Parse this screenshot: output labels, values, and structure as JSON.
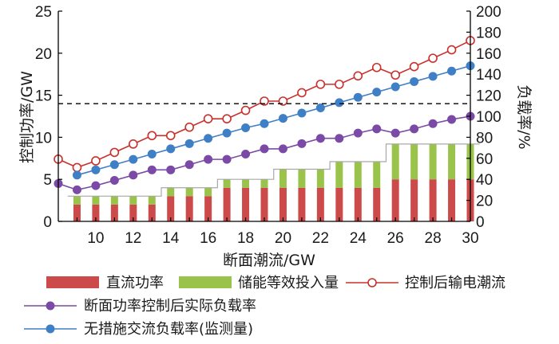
{
  "chart_data": {
    "type": "bar+line",
    "xlabel": "断面潮流/GW",
    "ylabel_left": "控制功率/GW",
    "ylabel_right": "负载率/%",
    "xlim": [
      8,
      30
    ],
    "ylim_left": [
      0,
      25
    ],
    "ylim_right": [
      0,
      200
    ],
    "x_ticks": [
      "10",
      "12",
      "14",
      "16",
      "18",
      "20",
      "22",
      "24",
      "26",
      "28",
      "30"
    ],
    "y_left_ticks": [
      "0",
      "5",
      "10",
      "15",
      "20",
      "25"
    ],
    "y_right_ticks": [
      "0",
      "20",
      "40",
      "60",
      "80",
      "100",
      "120",
      "140",
      "160",
      "180",
      "200"
    ],
    "threshold_line": {
      "axis": "left",
      "value": 14,
      "style": "dashed"
    },
    "bars": {
      "x": [
        9,
        10,
        11,
        12,
        13,
        14,
        15,
        16,
        17,
        18,
        19,
        20,
        21,
        22,
        23,
        24,
        25,
        26,
        27,
        28,
        29,
        30
      ],
      "series": [
        {
          "name": "直流功率",
          "color": "#cc4a4a",
          "values": [
            2,
            2,
            2,
            2,
            2,
            3,
            3,
            3,
            4,
            4,
            4,
            4,
            4,
            4,
            4,
            4,
            4,
            5,
            5,
            5,
            5,
            5
          ]
        },
        {
          "name": "储能等效投入量",
          "color": "#99c34a",
          "values": [
            1,
            1,
            1,
            1,
            1,
            1,
            1,
            1,
            1,
            1,
            1,
            2.2,
            2.2,
            2.2,
            3.1,
            3.1,
            3.1,
            4.2,
            4.2,
            4.2,
            4.2,
            4.2
          ]
        }
      ]
    },
    "lines": [
      {
        "name": "控制后输电潮流",
        "axis": "left",
        "color": "#c9302c",
        "marker": "hollow-circle",
        "x": [
          8,
          9,
          10,
          11,
          12,
          13,
          14,
          15,
          16,
          17,
          18,
          19,
          20,
          21,
          22,
          23,
          24,
          25,
          26,
          27,
          28,
          29,
          30
        ],
        "values": [
          7.4,
          6.4,
          7.2,
          8.2,
          9.2,
          10.2,
          10.2,
          11.2,
          12.2,
          12.2,
          13.2,
          14.3,
          14.3,
          15.3,
          16.3,
          16.3,
          17.3,
          18.3,
          17.4,
          18.4,
          19.4,
          20.4,
          21.5
        ]
      },
      {
        "name": "断面功率控制后实际负载率",
        "axis": "right",
        "color": "#7b4aa6",
        "marker": "filled-circle",
        "x": [
          8,
          9,
          10,
          11,
          12,
          13,
          14,
          15,
          16,
          17,
          18,
          19,
          20,
          21,
          22,
          23,
          24,
          25,
          26,
          27,
          28,
          29,
          30
        ],
        "values": [
          36,
          30,
          34,
          39,
          44,
          49,
          49,
          54,
          59,
          59,
          64,
          69,
          69,
          74,
          79,
          79,
          84,
          88,
          84,
          88,
          93,
          97,
          100
        ]
      },
      {
        "name": "无措施交流负载率(监测量)",
        "axis": "right",
        "color": "#3f7fc6",
        "marker": "filled-circle",
        "x": [
          9,
          10,
          11,
          12,
          13,
          14,
          15,
          16,
          17,
          18,
          19,
          20,
          21,
          22,
          23,
          24,
          25,
          26,
          27,
          28,
          29,
          30
        ],
        "values": [
          44,
          49,
          54,
          59,
          64,
          69,
          74,
          79,
          84,
          89,
          93,
          98,
          103,
          108,
          113,
          118,
          123,
          128,
          133,
          138,
          143,
          148
        ]
      }
    ],
    "legend": [
      "直流功率",
      "储能等效投入量",
      "控制后输电潮流",
      "断面功率控制后实际负载率",
      "无措施交流负载率(监测量)"
    ],
    "legend_position": "bottom",
    "grid": false
  }
}
